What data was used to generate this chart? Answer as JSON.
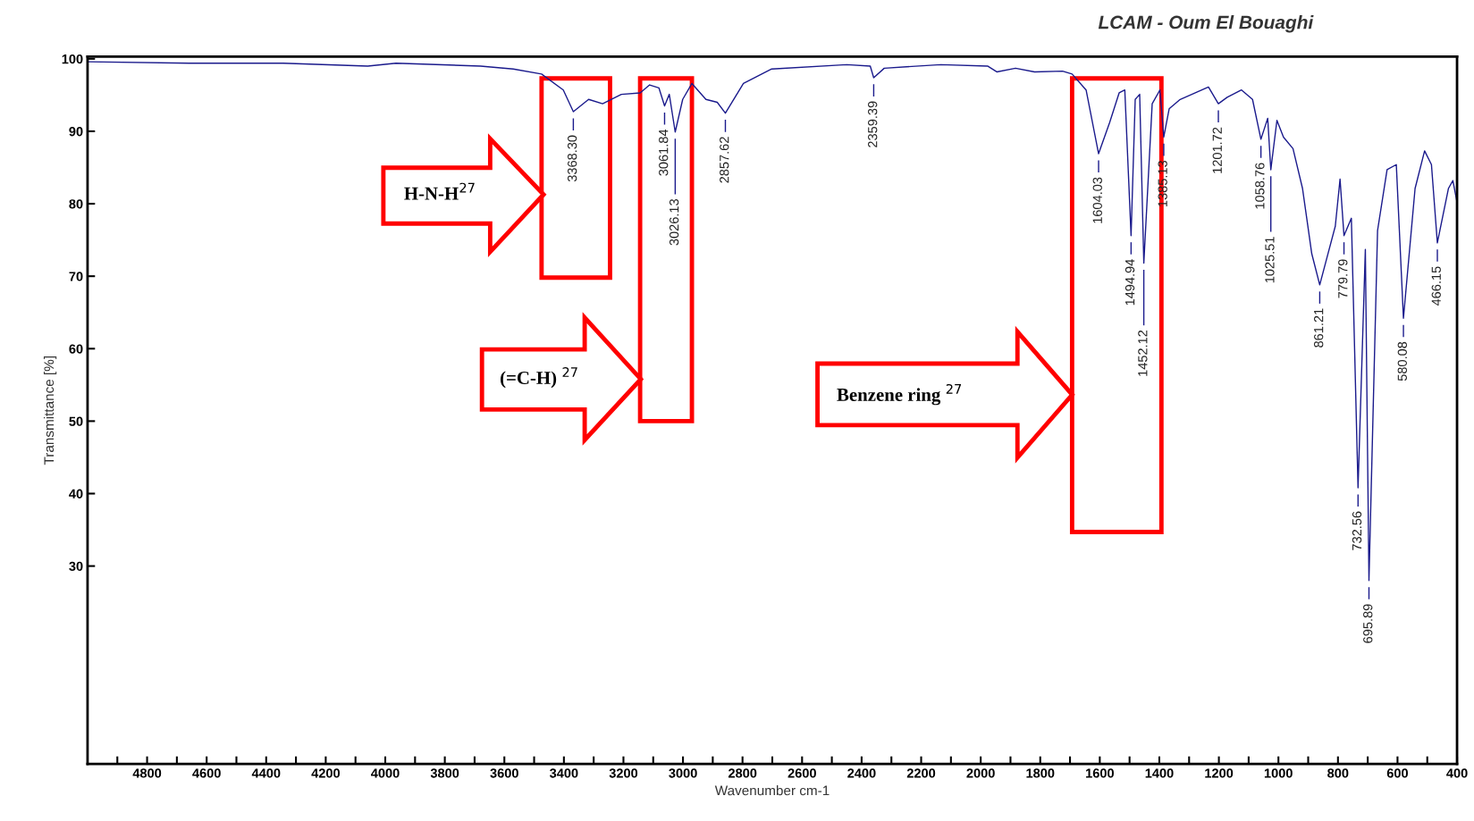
{
  "chart_data": {
    "type": "line",
    "title": "LCAM - Oum El Bouaghi",
    "xlabel": "Wavenumber cm-1",
    "ylabel": "Transmittance [%]",
    "x": [
      4996,
      4658,
      4343,
      4059,
      3964,
      3680,
      3570,
      3475,
      3402,
      3368.3,
      3317,
      3270,
      3207,
      3144,
      3112,
      3081,
      3061.84,
      3046,
      3026.13,
      3001,
      2970,
      2923,
      2885,
      2857.62,
      2797,
      2702,
      2450,
      2371,
      2359.39,
      2324,
      2134,
      1977,
      1946,
      1883,
      1819,
      1725,
      1693,
      1646,
      1604.03,
      1567,
      1535,
      1516,
      1494.94,
      1481,
      1466,
      1452.12,
      1424,
      1398,
      1385.13,
      1367,
      1330,
      1235,
      1201.72,
      1172,
      1124,
      1087,
      1058.76,
      1036,
      1025.51,
      1005,
      983,
      951,
      919,
      888,
      861.21,
      809,
      793,
      779.79,
      755,
      732.56,
      708,
      695.89,
      667,
      635,
      604,
      580.08,
      541,
      509,
      486,
      466.15,
      429,
      414,
      400
    ],
    "series": [
      {
        "color": "#1a1a8c",
        "values": [
          99.6,
          99.4,
          99.4,
          99.0,
          99.4,
          99.0,
          98.6,
          97.9,
          95.7,
          92.7,
          94.4,
          93.8,
          95.1,
          95.3,
          96.4,
          96.0,
          93.5,
          95.1,
          89.9,
          94.4,
          96.6,
          94.4,
          94.0,
          92.5,
          96.6,
          98.6,
          99.2,
          99.0,
          97.4,
          98.7,
          99.2,
          99.0,
          98.2,
          98.7,
          98.2,
          98.3,
          97.9,
          95.7,
          86.9,
          91.2,
          95.3,
          95.7,
          75.6,
          94.4,
          95.1,
          71.8,
          93.8,
          95.7,
          89.2,
          93.1,
          94.4,
          96.1,
          93.8,
          94.7,
          95.7,
          94.4,
          88.9,
          91.8,
          84.7,
          91.5,
          89.2,
          87.6,
          82.1,
          73.1,
          68.8,
          76.9,
          83.4,
          75.6,
          78.0,
          40.8,
          73.7,
          28.0,
          76.3,
          84.7,
          85.4,
          64.2,
          82.1,
          87.3,
          85.4,
          74.6,
          82.1,
          83.2,
          80.2
        ]
      }
    ],
    "xlim": [
      5000,
      400
    ],
    "ylim": [
      2.7,
      100.3
    ],
    "xticks": [
      {
        "value": 4900,
        "label": null
      },
      4800,
      {
        "value": 4700,
        "label": null
      },
      4600,
      {
        "value": 4500,
        "label": null
      },
      4400,
      {
        "value": 4300,
        "label": null
      },
      4200,
      {
        "value": 4100,
        "label": null
      },
      4000,
      {
        "value": 3900,
        "label": null
      },
      3800,
      {
        "value": 3700,
        "label": null
      },
      3600,
      {
        "value": 3500,
        "label": null
      },
      3400,
      {
        "value": 3300,
        "label": null
      },
      3200,
      {
        "value": 3100,
        "label": null
      },
      3000,
      {
        "value": 2900,
        "label": null
      },
      2800,
      {
        "value": 2700,
        "label": null
      },
      2600,
      {
        "value": 2500,
        "label": null
      },
      2400,
      {
        "value": 2300,
        "label": null
      },
      2200,
      {
        "value": 2100,
        "label": null
      },
      2000,
      {
        "value": 1900,
        "label": null
      },
      1800,
      {
        "value": 1700,
        "label": null
      },
      1600,
      {
        "value": 1500,
        "label": null
      },
      1400,
      {
        "value": 1300,
        "label": null
      },
      1200,
      {
        "value": 1100,
        "label": null
      },
      1000,
      {
        "value": 900,
        "label": null
      },
      800,
      {
        "value": 700,
        "label": null
      },
      600,
      {
        "value": 500,
        "label": null
      },
      400
    ],
    "yticks": [
      30,
      40,
      50,
      60,
      70,
      80,
      90,
      100
    ],
    "annotations": [
      {
        "text": "3368.30",
        "x": 3368.3,
        "y": 92.7
      },
      {
        "text": "3061.84",
        "x": 3061.84,
        "y": 93.5
      },
      {
        "text": "3026.13",
        "x": 3026.13,
        "y": 89.9
      },
      {
        "text": "2857.62",
        "x": 2857.62,
        "y": 92.5
      },
      {
        "text": "2359.39",
        "x": 2359.39,
        "y": 97.4
      },
      {
        "text": "1604.03",
        "x": 1604.03,
        "y": 86.9
      },
      {
        "text": "1494.94",
        "x": 1494.94,
        "y": 75.6
      },
      {
        "text": "1452.12",
        "x": 1452.12,
        "y": 71.8
      },
      {
        "text": "1385.13",
        "x": 1385.13,
        "y": 89.2
      },
      {
        "text": "1201.72",
        "x": 1201.72,
        "y": 93.8
      },
      {
        "text": "1058.76",
        "x": 1058.76,
        "y": 88.9
      },
      {
        "text": "1025.51",
        "x": 1025.51,
        "y": 84.7
      },
      {
        "text": "861.21",
        "x": 861.21,
        "y": 68.8
      },
      {
        "text": "779.79",
        "x": 779.79,
        "y": 75.6
      },
      {
        "text": "732.56",
        "x": 732.56,
        "y": 40.8
      },
      {
        "text": "695.89",
        "x": 695.89,
        "y": 28.0
      },
      {
        "text": "580.08",
        "x": 580.08,
        "y": 64.2
      },
      {
        "text": "466.15",
        "x": 466.15,
        "y": 74.6
      },
      "H-N-H$^{27}$",
      "(=C-H) $^{27}$",
      "Benzene ring $^{27}$"
    ],
    "legend": false,
    "grid": false
  }
}
